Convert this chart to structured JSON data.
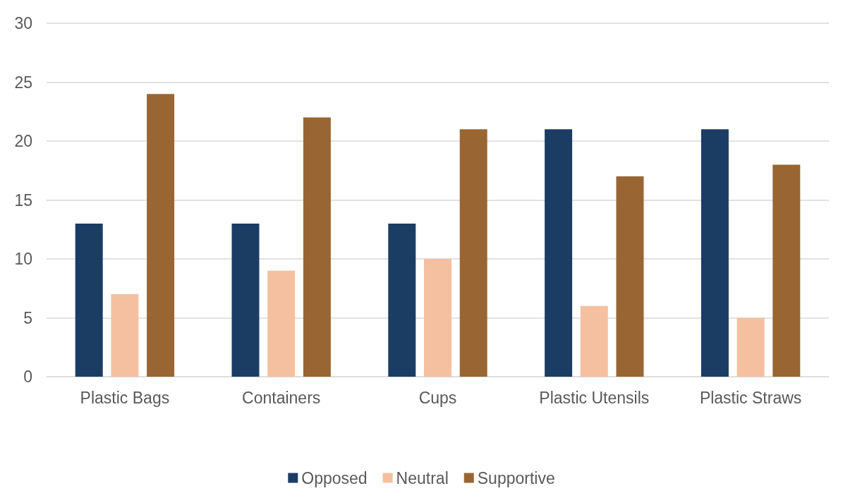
{
  "chart_data": {
    "type": "bar",
    "categories": [
      "Plastic Bags",
      "Containers",
      "Cups",
      "Plastic Utensils",
      "Plastic Straws"
    ],
    "series": [
      {
        "name": "Opposed",
        "color": "#1b3d64",
        "values": [
          13,
          13,
          13,
          21,
          21
        ]
      },
      {
        "name": "Neutral",
        "color": "#f4c0a0",
        "values": [
          7,
          9,
          10,
          6,
          5
        ]
      },
      {
        "name": "Supportive",
        "color": "#996633",
        "values": [
          24,
          22,
          21,
          17,
          18
        ]
      }
    ],
    "ylim": [
      0,
      30
    ],
    "yticks": [
      0,
      5,
      10,
      15,
      20,
      25,
      30
    ],
    "grid": "y",
    "legend": "bottom"
  }
}
